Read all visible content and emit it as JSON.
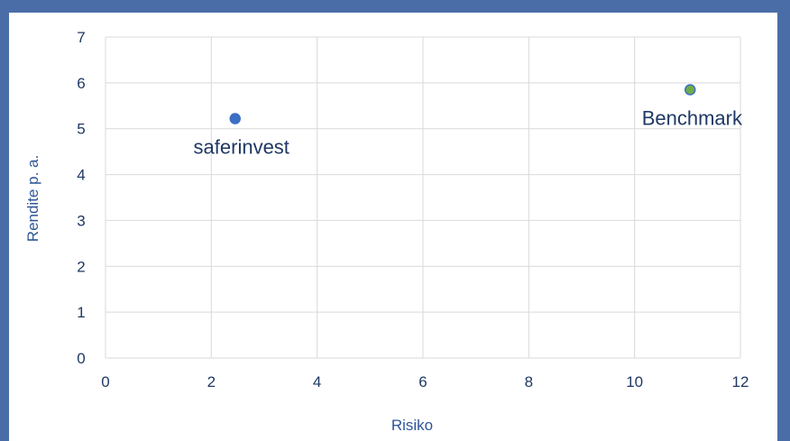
{
  "chart_data": {
    "type": "scatter",
    "title": "",
    "xlabel": "Risiko",
    "ylabel": "Rendite p. a.",
    "xlim": [
      0,
      12
    ],
    "ylim": [
      0,
      7
    ],
    "xticks": [
      0,
      2,
      4,
      6,
      8,
      10,
      12
    ],
    "yticks": [
      0,
      1,
      2,
      3,
      4,
      5,
      6,
      7
    ],
    "grid": true,
    "legend": "none",
    "points": [
      {
        "label": "saferinvest",
        "x": 2.45,
        "y": 5.22,
        "color": "#3b6fc4",
        "label_position": "below"
      },
      {
        "label": "Benchmark",
        "x": 11.05,
        "y": 5.85,
        "color": "#70ad47",
        "stroke": "#3b6fc4",
        "label_position": "below"
      }
    ],
    "colors": {
      "grid": "#d9d9d9",
      "tick_text": "#1f3864",
      "axis_title": "#2e5597",
      "border": "#4a6da8"
    }
  }
}
